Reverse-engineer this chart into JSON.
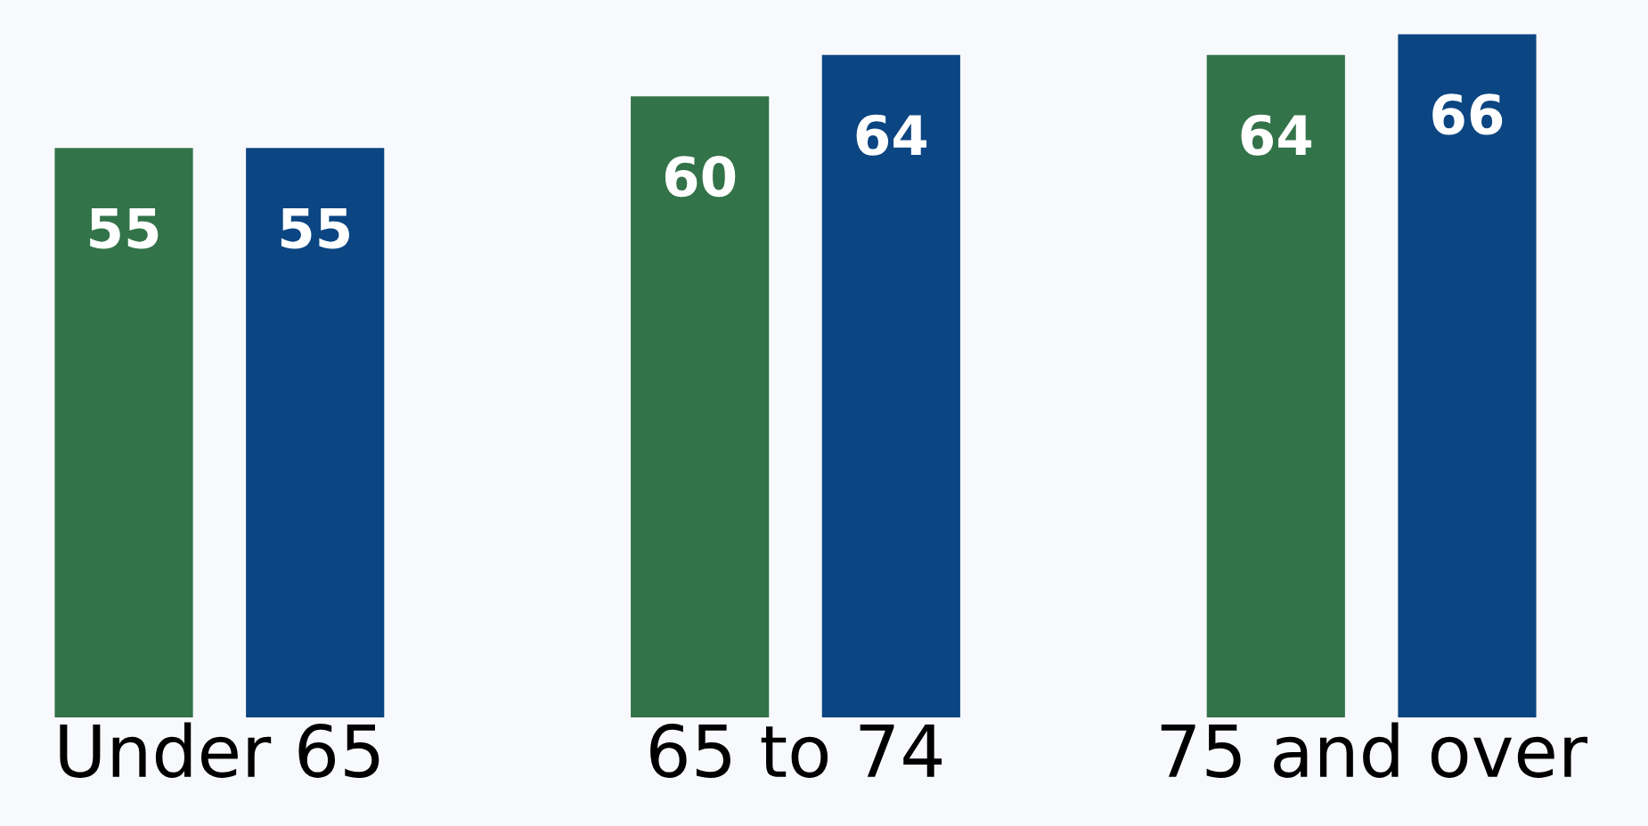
{
  "chart_data": {
    "type": "bar",
    "categories": [
      "Under 65",
      "65 to 74",
      "75 and over"
    ],
    "series": [
      {
        "color": "#337349",
        "values": [
          55,
          60,
          64
        ]
      },
      {
        "color": "#0b4582",
        "values": [
          55,
          64,
          66
        ]
      }
    ],
    "data_labels": true,
    "grid": false,
    "legend": false
  }
}
